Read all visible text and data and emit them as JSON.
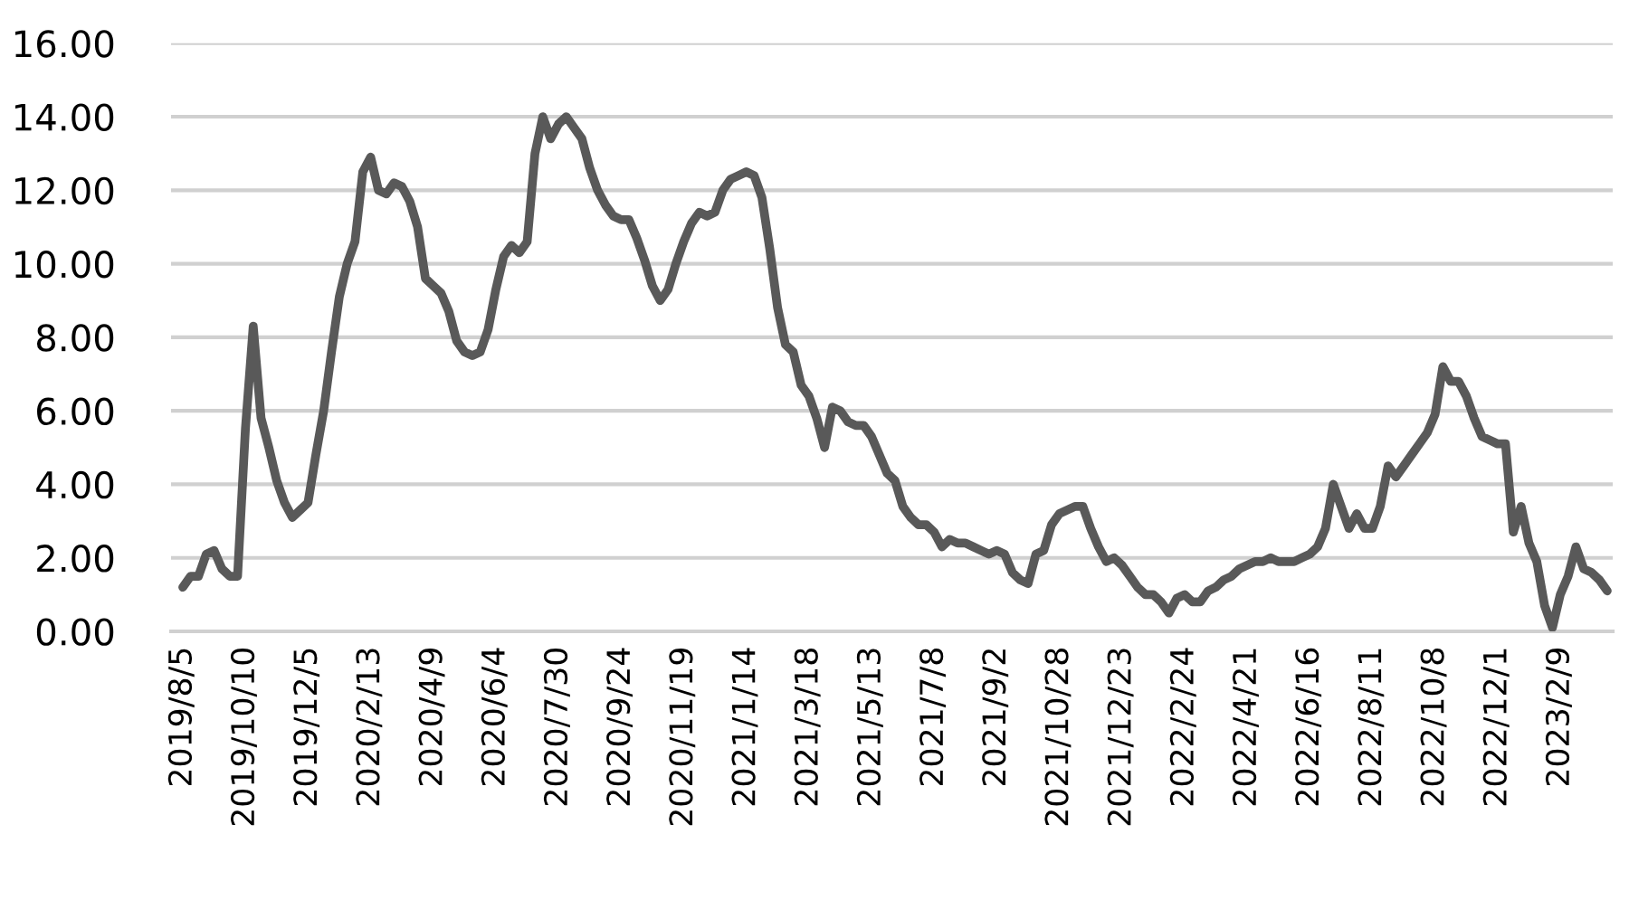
{
  "chart_data": {
    "type": "line",
    "categories": [
      "2019/8/5",
      null,
      null,
      null,
      null,
      null,
      null,
      null,
      "2019/10/10",
      null,
      null,
      null,
      null,
      null,
      null,
      null,
      "2019/12/5",
      null,
      null,
      null,
      null,
      null,
      null,
      null,
      "2020/2/13",
      null,
      null,
      null,
      null,
      null,
      null,
      null,
      "2020/4/9",
      null,
      null,
      null,
      null,
      null,
      null,
      null,
      "2020/6/4",
      null,
      null,
      null,
      null,
      null,
      null,
      null,
      "2020/7/30",
      null,
      null,
      null,
      null,
      null,
      null,
      null,
      "2020/9/24",
      null,
      null,
      null,
      null,
      null,
      null,
      null,
      "2020/11/19",
      null,
      null,
      null,
      null,
      null,
      null,
      null,
      "2021/1/14",
      null,
      null,
      null,
      null,
      null,
      null,
      null,
      "2021/3/18",
      null,
      null,
      null,
      null,
      null,
      null,
      null,
      "2021/5/13",
      null,
      null,
      null,
      null,
      null,
      null,
      null,
      "2021/7/8",
      null,
      null,
      null,
      null,
      null,
      null,
      null,
      "2021/9/2",
      null,
      null,
      null,
      null,
      null,
      null,
      null,
      "2021/10/28",
      null,
      null,
      null,
      null,
      null,
      null,
      null,
      "2021/12/23",
      null,
      null,
      null,
      null,
      null,
      null,
      null,
      "2022/2/24",
      null,
      null,
      null,
      null,
      null,
      null,
      null,
      "2022/4/21",
      null,
      null,
      null,
      null,
      null,
      null,
      null,
      "2022/6/16",
      null,
      null,
      null,
      null,
      null,
      null,
      null,
      "2022/8/11",
      null,
      null,
      null,
      null,
      null,
      null,
      null,
      "2022/10/8",
      null,
      null,
      null,
      null,
      null,
      null,
      null,
      "2022/12/1",
      null,
      null,
      null,
      null,
      null,
      null,
      null,
      "2023/2/9",
      null,
      null,
      null,
      null,
      null,
      null
    ],
    "series": [
      {
        "color": "#595959",
        "values": [
          1.2,
          1.5,
          1.5,
          2.1,
          2.2,
          1.7,
          1.5,
          1.5,
          5.5,
          8.3,
          5.8,
          5.0,
          4.1,
          3.5,
          3.1,
          3.3,
          3.5,
          4.8,
          6.0,
          7.6,
          9.1,
          10.0,
          10.6,
          12.5,
          12.9,
          12.0,
          11.9,
          12.2,
          12.1,
          11.7,
          11.0,
          9.6,
          9.4,
          9.2,
          8.7,
          7.9,
          7.6,
          7.5,
          7.6,
          8.2,
          9.3,
          10.2,
          10.5,
          10.3,
          10.6,
          13.0,
          14.0,
          13.4,
          13.8,
          14.0,
          13.7,
          13.4,
          12.6,
          12.0,
          11.6,
          11.3,
          11.2,
          11.2,
          10.7,
          10.1,
          9.4,
          9.0,
          9.3,
          10.0,
          10.6,
          11.1,
          11.4,
          11.3,
          11.4,
          12.0,
          12.3,
          12.4,
          12.5,
          12.4,
          11.8,
          10.4,
          8.8,
          7.8,
          7.6,
          6.7,
          6.4,
          5.8,
          5.0,
          6.1,
          6.0,
          5.7,
          5.6,
          5.6,
          5.3,
          4.8,
          4.3,
          4.1,
          3.4,
          3.1,
          2.9,
          2.9,
          2.7,
          2.3,
          2.5,
          2.4,
          2.4,
          2.3,
          2.2,
          2.1,
          2.2,
          2.1,
          1.6,
          1.4,
          1.3,
          2.1,
          2.2,
          2.9,
          3.2,
          3.3,
          3.4,
          3.4,
          2.8,
          2.3,
          1.9,
          2.0,
          1.8,
          1.5,
          1.2,
          1.0,
          1.0,
          0.8,
          0.5,
          0.9,
          1.0,
          0.8,
          0.8,
          1.1,
          1.2,
          1.4,
          1.5,
          1.7,
          1.8,
          1.9,
          1.9,
          2.0,
          1.9,
          1.9,
          1.9,
          2.0,
          2.1,
          2.3,
          2.8,
          4.0,
          3.4,
          2.8,
          3.2,
          2.8,
          2.8,
          3.4,
          4.5,
          4.2,
          4.5,
          4.8,
          5.1,
          5.4,
          5.9,
          7.2,
          6.8,
          6.8,
          6.4,
          5.8,
          5.3,
          5.2,
          5.1,
          5.1,
          2.7,
          3.4,
          2.4,
          1.9,
          0.7,
          0.1,
          1.0,
          1.5,
          2.3,
          1.7,
          1.6,
          1.4,
          1.1
        ]
      }
    ],
    "ylim": [
      0,
      16
    ],
    "yticks": [
      {
        "value": 0,
        "label": "0.00"
      },
      {
        "value": 2,
        "label": "2.00"
      },
      {
        "value": 4,
        "label": "4.00"
      },
      {
        "value": 6,
        "label": "6.00"
      },
      {
        "value": 8,
        "label": "8.00"
      },
      {
        "value": 10,
        "label": "10.00"
      },
      {
        "value": 12,
        "label": "12.00"
      },
      {
        "value": 14,
        "label": "14.00"
      },
      {
        "value": 16,
        "label": "16.00"
      }
    ],
    "grid": "y",
    "line_style": "solid"
  }
}
